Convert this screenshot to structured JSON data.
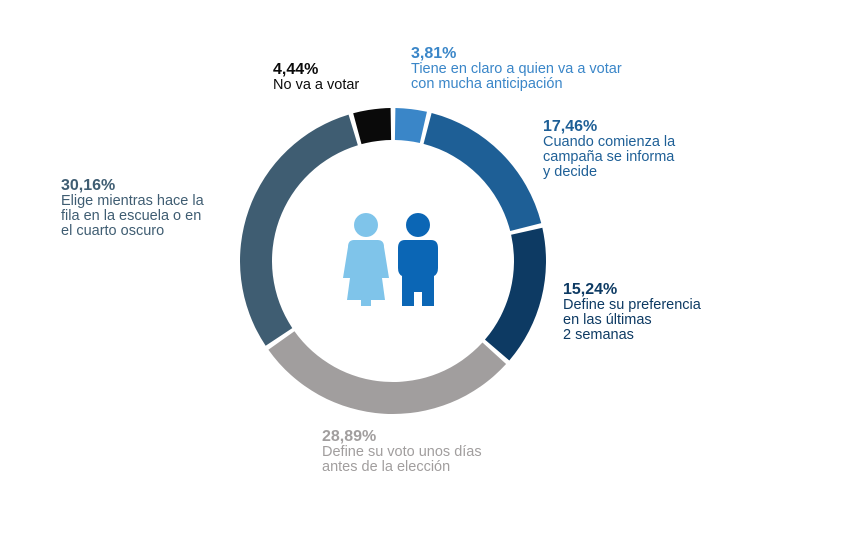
{
  "chart_data": {
    "type": "pie",
    "subtype": "donut",
    "slices": [
      {
        "value_label": "3,81%",
        "value": 3.81,
        "label": "Tiene en claro a quien va a votar\ncon mucha anticipación",
        "color": "#3a86c8"
      },
      {
        "value_label": "17,46%",
        "value": 17.46,
        "label": "Cuando comienza la\ncampaña se informa\ny decide",
        "color": "#1e5f96"
      },
      {
        "value_label": "15,24%",
        "value": 15.24,
        "label": "Define su preferencia\nen las últimas\n2 semanas",
        "color": "#0d3a63"
      },
      {
        "value_label": "28,89%",
        "value": 28.89,
        "label": "Define su voto unos días\nantes de la elección",
        "color": "#a19e9e"
      },
      {
        "value_label": "30,16%",
        "value": 30.16,
        "label": "Elige mientras hace la\nfila en la escuela o en\nel cuarto oscuro",
        "color": "#3f5d72"
      },
      {
        "value_label": "4,44%",
        "value": 4.44,
        "label": "No va a votar",
        "color": "#0a0a0a"
      }
    ],
    "center_icons": [
      "woman-icon",
      "man-icon"
    ],
    "center_icon_colors": [
      "#7fc4ea",
      "#0b66b5"
    ]
  }
}
